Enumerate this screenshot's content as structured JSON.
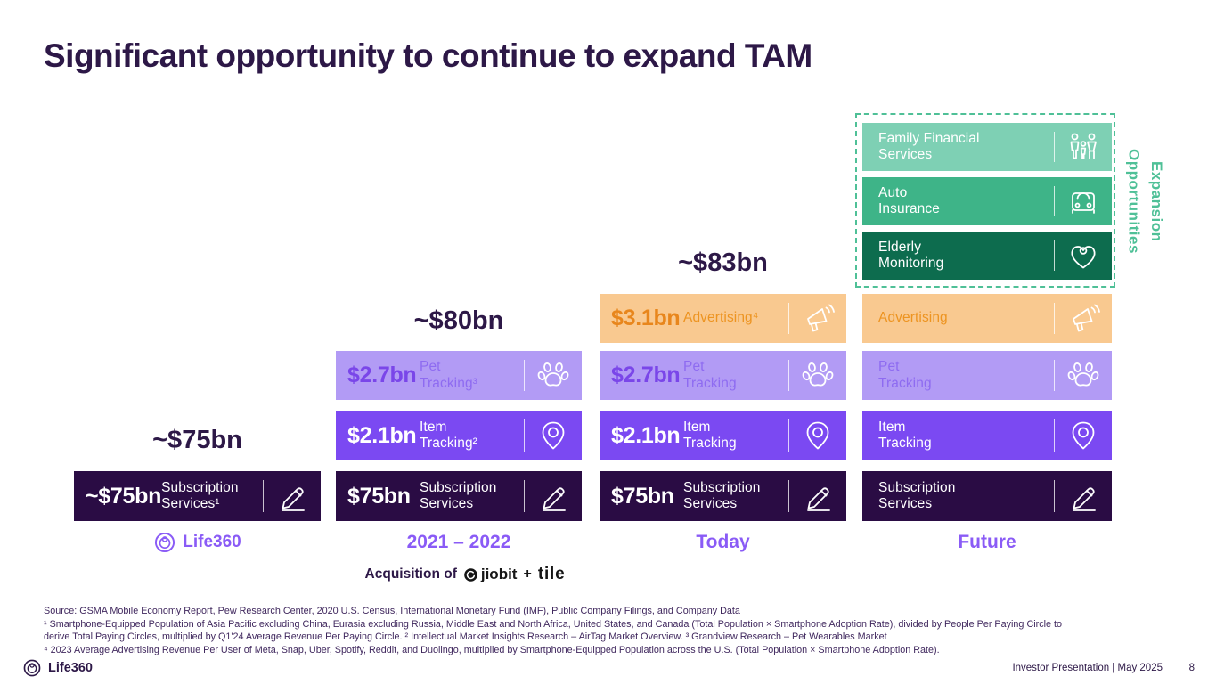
{
  "title": "Significant opportunity to continue to expand TAM",
  "expansion_label": "Expansion\nOpportunities",
  "acquisition": {
    "prefix": "Acquisition of",
    "jiobit": "jiobit",
    "plus": "+",
    "tile": "tile"
  },
  "columns": [
    {
      "footer_logo": "Life360",
      "total": "~$75bn",
      "bars": [
        {
          "row": "subscription",
          "style": "dark",
          "value": "~$75bn",
          "label": "Subscription\nServices¹",
          "icon": "pen-icon"
        }
      ]
    },
    {
      "footer_label": "2021 – 2022",
      "total": "~$80bn",
      "bars": [
        {
          "row": "pet",
          "style": "pet",
          "value": "$2.7bn",
          "label": "Pet\nTracking³",
          "icon": "paw-icon"
        },
        {
          "row": "item",
          "style": "item",
          "value": "$2.1bn",
          "label": "Item\nTracking²",
          "icon": "pin-icon"
        },
        {
          "row": "subscription",
          "style": "dark",
          "value": "$75bn",
          "label": "Subscription\nServices",
          "icon": "pen-icon"
        }
      ]
    },
    {
      "footer_label": "Today",
      "total": "~$83bn",
      "bars": [
        {
          "row": "advertising",
          "style": "advertising",
          "value": "$3.1bn",
          "label": "Advertising⁴",
          "icon": "megaphone-icon"
        },
        {
          "row": "pet",
          "style": "pet",
          "value": "$2.7bn",
          "label": "Pet\nTracking",
          "icon": "paw-icon"
        },
        {
          "row": "item",
          "style": "item",
          "value": "$2.1bn",
          "label": "Item\nTracking",
          "icon": "pin-icon"
        },
        {
          "row": "subscription",
          "style": "dark",
          "value": "$75bn",
          "label": "Subscription\nServices",
          "icon": "pen-icon"
        }
      ]
    },
    {
      "footer_label": "Future",
      "total": null,
      "bars": [
        {
          "row": "family",
          "style": "family",
          "label": "Family Financial\nServices",
          "icon": "family-icon"
        },
        {
          "row": "auto",
          "style": "auto",
          "label": "Auto\nInsurance",
          "icon": "car-icon"
        },
        {
          "row": "elderly",
          "style": "elderly",
          "label": "Elderly\nMonitoring",
          "icon": "heart-loop-icon"
        },
        {
          "row": "advertising",
          "style": "advertising",
          "label": "Advertising",
          "icon": "megaphone-icon"
        },
        {
          "row": "pet",
          "style": "pet",
          "label": "Pet\nTracking",
          "icon": "paw-icon"
        },
        {
          "row": "item",
          "style": "item",
          "label": "Item\nTracking",
          "icon": "pin-icon"
        },
        {
          "row": "subscription",
          "style": "dark",
          "label": "Subscription\nServices",
          "icon": "pen-icon"
        }
      ]
    }
  ],
  "footnotes": [
    "Source: GSMA Mobile Economy Report, Pew Research Center, 2020 U.S. Census, International Monetary Fund (IMF), Public Company Filings, and Company Data",
    "¹ Smartphone-Equipped Population of Asia Pacific excluding China, Eurasia excluding Russia, Middle East and North Africa, United States, and Canada (Total Population × Smartphone Adoption Rate), divided by People Per Paying Circle to",
    "derive Total Paying Circles, multiplied by Q1'24 Average Revenue Per Paying Circle. ² Intellectual Market Insights Research – AirTag Market Overview. ³ Grandview Research – Pet Wearables Market",
    "⁴ 2023 Average Advertising Revenue Per User of Meta, Snap, Uber, Spotify, Reddit, and Duolingo, multiplied by Smartphone-Equipped Population across the U.S. (Total Population × Smartphone Adoption Rate)."
  ],
  "footer": {
    "brand": "Life360",
    "right": "Investor Presentation  | May 2025",
    "page": "8"
  },
  "colors": {
    "subscription_bg": "#2a0c44",
    "item_bg": "#7b49f2",
    "pet_bg": "#b29bf5",
    "pet_value_text": "#7a46e9",
    "advertising_bg": "#f9c990",
    "advertising_value_text": "#e8861c",
    "family_bg": "#7ed0b4",
    "auto_bg": "#3eb488",
    "elderly_bg": "#0d6c4e",
    "expansion_green": "#4fc097",
    "column_label_purple": "#8a5bf6",
    "title_purple": "#2d1847"
  },
  "chart_data": {
    "type": "bar",
    "subtype": "stacked-horizontal-segments-by-period",
    "title": "Significant opportunity to continue to expand TAM",
    "unit": "USD billions",
    "categories": [
      "Life360",
      "2021 – 2022",
      "Today",
      "Future"
    ],
    "series": [
      {
        "name": "Subscription Services",
        "values": [
          75,
          75,
          75,
          null
        ]
      },
      {
        "name": "Item Tracking",
        "values": [
          null,
          2.1,
          2.1,
          null
        ]
      },
      {
        "name": "Pet Tracking",
        "values": [
          null,
          2.7,
          2.7,
          null
        ]
      },
      {
        "name": "Advertising",
        "values": [
          null,
          null,
          3.1,
          null
        ]
      },
      {
        "name": "Elderly Monitoring",
        "values": [
          null,
          null,
          null,
          null
        ]
      },
      {
        "name": "Auto Insurance",
        "values": [
          null,
          null,
          null,
          null
        ]
      },
      {
        "name": "Family Financial Services",
        "values": [
          null,
          null,
          null,
          null
        ]
      }
    ],
    "totals": [
      "~$75bn",
      "~$80bn",
      "~$83bn",
      null
    ],
    "annotations": [
      "Expansion Opportunities (Family Financial Services, Auto Insurance, Elderly Monitoring)",
      "Acquisition of jiobit + tile"
    ],
    "legend_position": "none",
    "grid": false
  }
}
